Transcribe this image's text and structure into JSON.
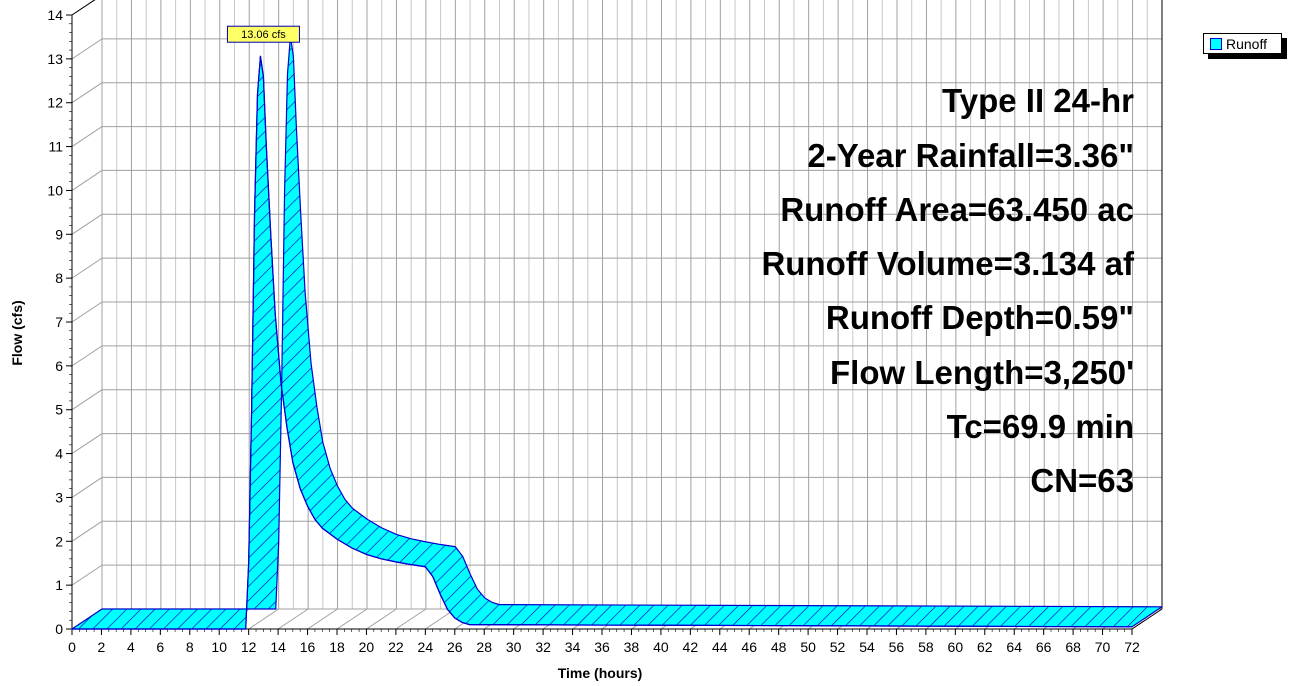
{
  "chart_data": {
    "type": "area",
    "xlabel": "Time  (hours)",
    "ylabel": "Flow  (cfs)",
    "xlim": [
      0,
      72
    ],
    "ylim": [
      0,
      14
    ],
    "x_ticks": [
      0,
      2,
      4,
      6,
      8,
      10,
      12,
      14,
      16,
      18,
      20,
      22,
      24,
      26,
      28,
      30,
      32,
      34,
      36,
      38,
      40,
      42,
      44,
      46,
      48,
      50,
      52,
      54,
      56,
      58,
      60,
      62,
      64,
      66,
      68,
      70,
      72
    ],
    "y_ticks": [
      0,
      1,
      2,
      3,
      4,
      5,
      6,
      7,
      8,
      9,
      10,
      11,
      12,
      13,
      14
    ],
    "grid": true,
    "legend_position": "top-right",
    "series": [
      {
        "name": "Runoff",
        "color": "#00ffff",
        "edge_color": "#0000cc",
        "x": [
          0,
          11.8,
          12.0,
          12.2,
          12.4,
          12.6,
          12.8,
          13.0,
          13.2,
          13.5,
          13.8,
          14.2,
          14.6,
          15.0,
          15.5,
          16.0,
          16.5,
          17.0,
          18.0,
          19.0,
          20.0,
          21.0,
          22.0,
          23.0,
          24.0,
          24.5,
          25.0,
          25.5,
          26.0,
          26.5,
          27.0,
          72
        ],
        "values": [
          0,
          0,
          1.5,
          5.0,
          9.5,
          12.2,
          13.06,
          12.6,
          11.0,
          9.0,
          7.2,
          5.6,
          4.6,
          3.8,
          3.2,
          2.8,
          2.5,
          2.3,
          2.05,
          1.85,
          1.7,
          1.6,
          1.53,
          1.47,
          1.42,
          1.2,
          0.8,
          0.45,
          0.25,
          0.15,
          0.1,
          0.05
        ]
      }
    ],
    "annotations": [
      {
        "text": "13.06 cfs",
        "x": 12.8,
        "y": 13.06
      }
    ]
  },
  "info_lines": [
    "Type II 24-hr",
    "2-Year Rainfall=3.36\"",
    "Runoff Area=63.450 ac",
    "Runoff Volume=3.134 af",
    "Runoff Depth=0.59\"",
    "Flow Length=3,250'",
    "Tc=69.9 min",
    "CN=63"
  ],
  "legend": {
    "label": "Runoff"
  }
}
